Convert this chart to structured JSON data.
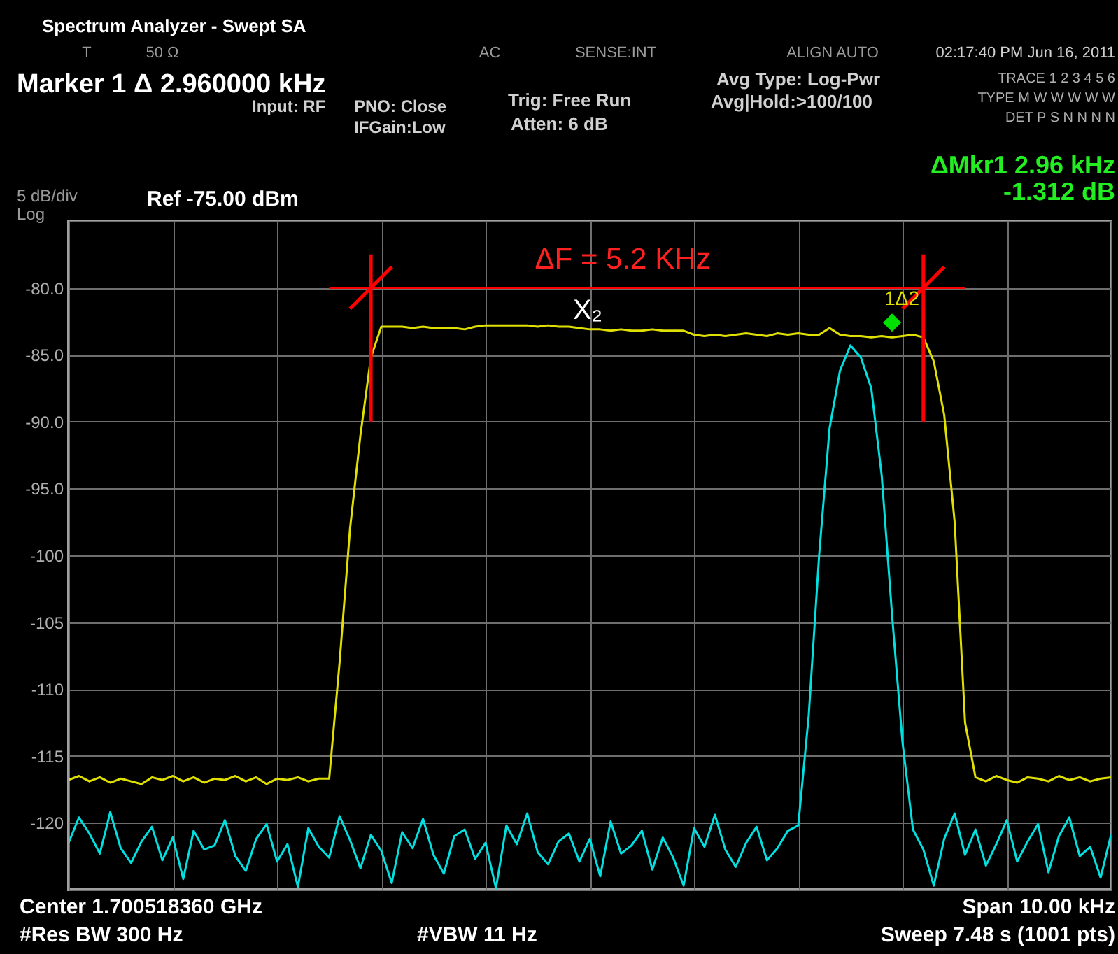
{
  "chart_data": {
    "type": "line",
    "title": "Spectrum Analyzer - Swept SA",
    "categories": [
      null,
      null,
      null,
      null,
      null,
      null,
      null,
      null,
      null,
      null,
      null,
      null,
      null,
      null,
      null,
      null,
      null,
      null,
      null,
      null,
      null,
      null,
      null,
      null,
      null,
      null,
      null,
      null,
      null,
      null,
      null,
      null,
      null,
      null,
      null,
      null,
      null,
      null,
      null,
      null,
      null,
      null,
      null,
      null,
      null,
      null,
      null,
      null,
      null,
      null,
      null,
      null,
      null,
      null,
      null,
      null,
      null,
      null,
      null,
      null,
      null,
      null,
      null,
      null,
      null,
      null,
      null,
      null,
      null,
      null,
      null,
      null,
      null,
      null,
      null,
      null,
      null,
      null,
      null,
      null,
      null,
      null,
      null,
      null,
      null,
      null,
      null,
      null,
      null,
      null,
      null,
      null,
      null,
      null,
      null,
      null,
      null,
      null,
      null,
      null,
      null
    ],
    "ylim": [
      -125,
      -75
    ],
    "yticks": [
      {
        "value": -75,
        "label": null
      },
      {
        "value": -80,
        "label": "-80.0"
      },
      {
        "value": -85,
        "label": "-85.0"
      },
      {
        "value": -90,
        "label": "-90.0"
      },
      {
        "value": -95,
        "label": "-95.0"
      },
      -100,
      -105,
      -110,
      -115,
      -120,
      {
        "value": -125,
        "label": null
      }
    ],
    "tick_labels": "y",
    "grid": true,
    "line_style": "solid",
    "series": [
      {
        "type": "line",
        "color": "#e0e000",
        "values": [
          -116.8,
          -116.5,
          -116.9,
          -116.6,
          -117.0,
          -116.7,
          -116.9,
          -117.1,
          -116.6,
          -116.8,
          -116.5,
          -116.9,
          -116.6,
          -117.0,
          -116.7,
          -116.8,
          -116.5,
          -116.9,
          -116.6,
          -117.1,
          -116.7,
          -116.8,
          -116.6,
          -116.9,
          -116.7,
          -116.7,
          -108,
          -98,
          -91,
          -85.2,
          -82.9,
          -82.9,
          -82.9,
          -83.0,
          -82.9,
          -83.0,
          -83.0,
          -83.0,
          -83.1,
          -82.9,
          -82.8,
          -82.8,
          -82.8,
          -82.8,
          -82.8,
          -82.9,
          -82.8,
          -82.9,
          -82.9,
          -83.0,
          -83.1,
          -83.1,
          -83.2,
          -83.1,
          -83.2,
          -83.2,
          -83.1,
          -83.2,
          -83.2,
          -83.2,
          -83.5,
          -83.6,
          -83.5,
          -83.6,
          -83.5,
          -83.4,
          -83.5,
          -83.6,
          -83.4,
          -83.5,
          -83.4,
          -83.5,
          -83.5,
          -83.0,
          -83.5,
          -83.6,
          -83.6,
          -83.7,
          -83.6,
          -83.7,
          -83.6,
          -83.5,
          -83.7,
          -85.5,
          -89.5,
          -97.5,
          -112.5,
          -116.6,
          -116.9,
          -116.5,
          -116.8,
          -117.0,
          -116.6,
          -116.7,
          -116.9,
          -116.5,
          -116.8,
          -116.6,
          -116.9,
          -116.7,
          -116.6
        ]
      },
      {
        "type": "line",
        "color": "#00e0e0",
        "values": [
          -121.5,
          -119.6,
          -120.8,
          -122.3,
          -119.2,
          -121.9,
          -123.0,
          -121.4,
          -120.3,
          -122.8,
          -121.1,
          -124.2,
          -120.6,
          -122.0,
          -121.7,
          -119.8,
          -122.5,
          -123.6,
          -121.2,
          -120.1,
          -122.9,
          -121.6,
          -124.8,
          -120.4,
          -121.8,
          -122.6,
          -119.5,
          -121.3,
          -123.4,
          -120.9,
          -122.1,
          -124.5,
          -120.7,
          -121.9,
          -119.7,
          -122.4,
          -123.8,
          -121.0,
          -120.5,
          -122.7,
          -121.5,
          -124.9,
          -120.2,
          -121.6,
          -119.3,
          -122.2,
          -123.1,
          -121.4,
          -120.8,
          -122.9,
          -121.2,
          -124.0,
          -119.9,
          -122.3,
          -121.7,
          -120.6,
          -123.5,
          -121.1,
          -122.6,
          -124.7,
          -120.4,
          -121.8,
          -119.4,
          -122.0,
          -123.3,
          -121.5,
          -120.3,
          -122.8,
          -121.9,
          -120.6,
          -120.2,
          -112,
          -100,
          -90.5,
          -86.2,
          -84.3,
          -85.2,
          -87.5,
          -94,
          -104.5,
          -114,
          -120.5,
          -122.0,
          -124.7,
          -121.2,
          -119.3,
          -122.4,
          -120.5,
          -123.2,
          -121.6,
          -119.8,
          -122.9,
          -121.4,
          -120.1,
          -123.7,
          -121.0,
          -119.6,
          -122.5,
          -121.8,
          -124.1,
          -120.9
        ]
      },
      {
        "type": "line",
        "color": "#ff0000",
        "values": [
          null,
          null,
          null,
          null,
          null,
          null,
          null,
          null,
          null,
          null,
          null,
          null,
          null,
          null,
          null,
          null,
          null,
          null,
          null,
          null,
          null,
          null,
          null,
          null,
          null,
          -80,
          -80,
          -80,
          -80,
          -80,
          -80,
          -80,
          -80,
          -80,
          -80,
          -80,
          -80,
          -80,
          -80,
          -80,
          -80,
          -80,
          -80,
          -80,
          -80,
          -80,
          -80,
          -80,
          -80,
          -80,
          -80,
          -80,
          -80,
          -80,
          -80,
          -80,
          -80,
          -80,
          -80,
          -80,
          -80,
          -80,
          -80,
          -80,
          -80,
          -80,
          -80,
          -80,
          -80,
          -80,
          -80,
          -80,
          -80,
          -80,
          -80,
          -80,
          -80,
          -80,
          -80,
          -80,
          -80,
          -80,
          -80,
          -80,
          -80,
          -80,
          -80,
          null,
          null,
          null,
          null,
          null,
          null,
          null,
          null,
          null,
          null,
          null,
          null,
          null,
          null
        ]
      },
      {
        "type": "scatter",
        "marker": "cross",
        "color": "#ff0000",
        "values": [
          null,
          null,
          null,
          null,
          null,
          null,
          null,
          null,
          null,
          null,
          null,
          null,
          null,
          null,
          null,
          null,
          null,
          null,
          null,
          null,
          null,
          null,
          null,
          null,
          null,
          null,
          null,
          null,
          null,
          -80,
          null,
          null,
          null,
          null,
          null,
          null,
          null,
          null,
          null,
          null,
          null,
          null,
          null,
          null,
          null,
          null,
          null,
          null,
          null,
          null,
          null,
          null,
          null,
          null,
          null,
          null,
          null,
          null,
          null,
          null,
          null,
          null,
          null,
          null,
          null,
          null,
          null,
          null,
          null,
          null,
          null,
          null,
          null,
          null,
          null,
          null,
          null,
          null,
          null,
          null,
          null,
          null,
          -80,
          null,
          null,
          null,
          null,
          null,
          null,
          null,
          null,
          null,
          null,
          null,
          null,
          null,
          null,
          null,
          null,
          null,
          null
        ],
        "errors": [
          null,
          null,
          null,
          null,
          null,
          null,
          null,
          null,
          null,
          null,
          null,
          null,
          null,
          null,
          null,
          null,
          null,
          null,
          null,
          null,
          null,
          null,
          null,
          null,
          null,
          null,
          null,
          null,
          null,
          [
            -90,
            -77.5
          ],
          null,
          null,
          null,
          null,
          null,
          null,
          null,
          null,
          null,
          null,
          null,
          null,
          null,
          null,
          null,
          null,
          null,
          null,
          null,
          null,
          null,
          null,
          null,
          null,
          null,
          null,
          null,
          null,
          null,
          null,
          null,
          null,
          null,
          null,
          null,
          null,
          null,
          null,
          null,
          null,
          null,
          null,
          null,
          null,
          null,
          null,
          null,
          null,
          null,
          null,
          null,
          null,
          [
            -90,
            -77.5
          ],
          null,
          null,
          null,
          null,
          null,
          null,
          null,
          null,
          null,
          null,
          null,
          null,
          null,
          null,
          null,
          null,
          null,
          null
        ]
      },
      {
        "type": "scatter",
        "marker": "diamond",
        "color": "#00e000",
        "values": [
          null,
          null,
          null,
          null,
          null,
          null,
          null,
          null,
          null,
          null,
          null,
          null,
          null,
          null,
          null,
          null,
          null,
          null,
          null,
          null,
          null,
          null,
          null,
          null,
          null,
          null,
          null,
          null,
          null,
          null,
          null,
          null,
          null,
          null,
          null,
          null,
          null,
          null,
          null,
          null,
          null,
          null,
          null,
          null,
          null,
          null,
          null,
          null,
          null,
          null,
          null,
          null,
          null,
          null,
          null,
          null,
          null,
          null,
          null,
          null,
          null,
          null,
          null,
          null,
          null,
          null,
          null,
          null,
          null,
          null,
          null,
          null,
          null,
          null,
          null,
          null,
          null,
          null,
          null,
          -82.6,
          null,
          null,
          null,
          null,
          null,
          null,
          null,
          null,
          null,
          null,
          null,
          null,
          null,
          null,
          null,
          null,
          null,
          null,
          null,
          null,
          null
        ]
      }
    ],
    "annotations": [
      "T",
      "50 Ω",
      "AC",
      "SENSE:INT",
      "ALIGN AUTO",
      "02:17:40 PM Jun 16, 2011",
      "Marker 1 Δ  2.960000 kHz",
      "Input: RF",
      "PNO: Close",
      "IFGain:Low",
      "Trig: Free Run",
      "Atten: 6 dB",
      "Avg Type: Log-Pwr",
      "Avg|Hold:>100/100",
      "TRACE 1 2 3 4 5 6",
      "TYPE M W W W W W",
      "DET P S N N N N",
      "ΔMkr1 2.96 kHz",
      "-1.312 dB",
      "5 dB/div",
      "Ref -75.00 dBm",
      "Log",
      "Center 1.700518360 GHz",
      "#Res BW 300 Hz",
      "#VBW 11 Hz",
      "Span 10.00 kHz",
      "Sweep  7.48 s (1001 pts)",
      "ΔF = 5.2 KHz",
      "X₂",
      "1Δ2"
    ]
  }
}
